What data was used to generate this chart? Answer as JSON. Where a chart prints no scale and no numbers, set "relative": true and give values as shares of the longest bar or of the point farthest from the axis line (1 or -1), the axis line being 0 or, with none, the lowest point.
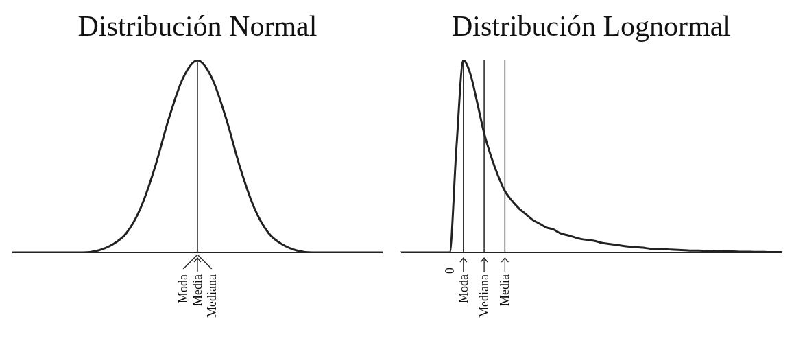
{
  "chart_data": [
    {
      "type": "line",
      "title": "Distribución Normal",
      "relative": true,
      "color": "#222222",
      "categories": [
        null,
        null,
        null,
        null,
        null,
        null,
        null,
        null,
        null,
        null,
        null,
        null,
        "Moda",
        "Media",
        "Mediana",
        null,
        null,
        null,
        null,
        null,
        null,
        null,
        null,
        null,
        null,
        null,
        null
      ],
      "values": [
        0,
        0,
        0,
        0,
        0,
        0,
        0.01,
        0.04,
        0.1,
        0.23,
        0.44,
        0.7,
        0.91,
        1,
        0.91,
        0.7,
        0.44,
        0.23,
        0.1,
        0.04,
        0.01,
        0,
        0,
        0,
        0,
        0,
        0
      ],
      "ref_lines": [
        {
          "axis": "x",
          "value": "Media",
          "color": "#222222"
        }
      ]
    },
    {
      "type": "line",
      "title": "Distribución Lognormal",
      "relative": true,
      "color": "#222222",
      "categories": [
        null,
        null,
        null,
        null,
        null,
        null,
        null,
        "0",
        null,
        "Moda",
        null,
        null,
        "Mediana",
        null,
        null,
        "Media",
        null,
        null,
        null,
        null,
        null,
        null,
        null,
        null,
        null,
        null,
        null,
        null,
        null,
        null,
        null,
        null,
        null,
        null,
        null,
        null,
        null,
        null,
        null,
        null,
        null,
        null,
        null,
        null,
        null,
        null,
        null,
        null,
        null,
        null,
        null,
        null,
        null,
        null,
        null,
        null
      ],
      "values": [
        0,
        0,
        0,
        0,
        0,
        0,
        0,
        0,
        0.55,
        1,
        0.93,
        0.78,
        0.62,
        0.5,
        0.4,
        0.32,
        0.27,
        0.23,
        0.2,
        0.17,
        0.15,
        0.13,
        0.12,
        0.1,
        0.09,
        0.08,
        0.07,
        0.065,
        0.06,
        0.05,
        0.045,
        0.04,
        0.035,
        0.03,
        0.028,
        0.025,
        0.02,
        0.02,
        0.018,
        0.015,
        0.013,
        0.012,
        0.01,
        0.01,
        0.008,
        0.007,
        0.006,
        0.005,
        0.005,
        0.004,
        0.004,
        0.003,
        0.003,
        0.002,
        0.002,
        0.002
      ],
      "ref_lines": [
        {
          "axis": "x",
          "value": "Moda",
          "color": "#222222"
        },
        {
          "axis": "x",
          "value": "Mediana",
          "color": "#222222"
        },
        {
          "axis": "x",
          "value": "Media",
          "color": "#222222"
        }
      ]
    }
  ]
}
